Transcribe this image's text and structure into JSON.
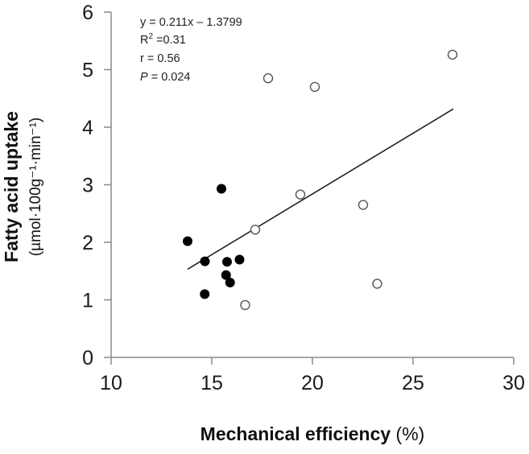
{
  "chart_data": {
    "type": "scatter",
    "title": "",
    "xlabel": "Mechanical efficiency",
    "xlabel_unit": "(%)",
    "ylabel": "Fatty acid uptake",
    "ylabel_unit": "(µmol·100g⁻¹·min⁻¹)",
    "xlim": [
      10,
      30
    ],
    "ylim": [
      0,
      6
    ],
    "xticks": [
      "10",
      "15",
      "20",
      "25",
      "30"
    ],
    "yticks": [
      "0",
      "1",
      "2",
      "3",
      "4",
      "5",
      "6"
    ],
    "grid": false,
    "series": [
      {
        "name": "filled",
        "marker": "filled-circle",
        "color": "#000000",
        "points": [
          [
            13.8,
            2.02
          ],
          [
            14.66,
            1.67
          ],
          [
            15.48,
            2.93
          ],
          [
            15.76,
            1.66
          ],
          [
            16.38,
            1.7
          ],
          [
            15.71,
            1.43
          ],
          [
            15.91,
            1.3
          ],
          [
            14.65,
            1.1
          ]
        ]
      },
      {
        "name": "open",
        "marker": "open-circle",
        "color": "#555555",
        "points": [
          [
            17.8,
            4.85
          ],
          [
            20.12,
            4.7
          ],
          [
            26.96,
            5.26
          ],
          [
            19.4,
            2.83
          ],
          [
            22.52,
            2.65
          ],
          [
            17.16,
            2.22
          ],
          [
            23.22,
            1.28
          ],
          [
            16.66,
            0.91
          ]
        ]
      }
    ],
    "regression": {
      "slope": 0.211,
      "intercept": -1.3799,
      "x_range": [
        13.8,
        27.0
      ]
    },
    "annotations": {
      "equation": "y = 0.211x – 1.3799",
      "r2_label": "R",
      "r2_sup": "2",
      "r2_value": " =0.31",
      "r": "r = 0.56",
      "p_label": "P",
      "p_value": " = 0.024"
    }
  }
}
